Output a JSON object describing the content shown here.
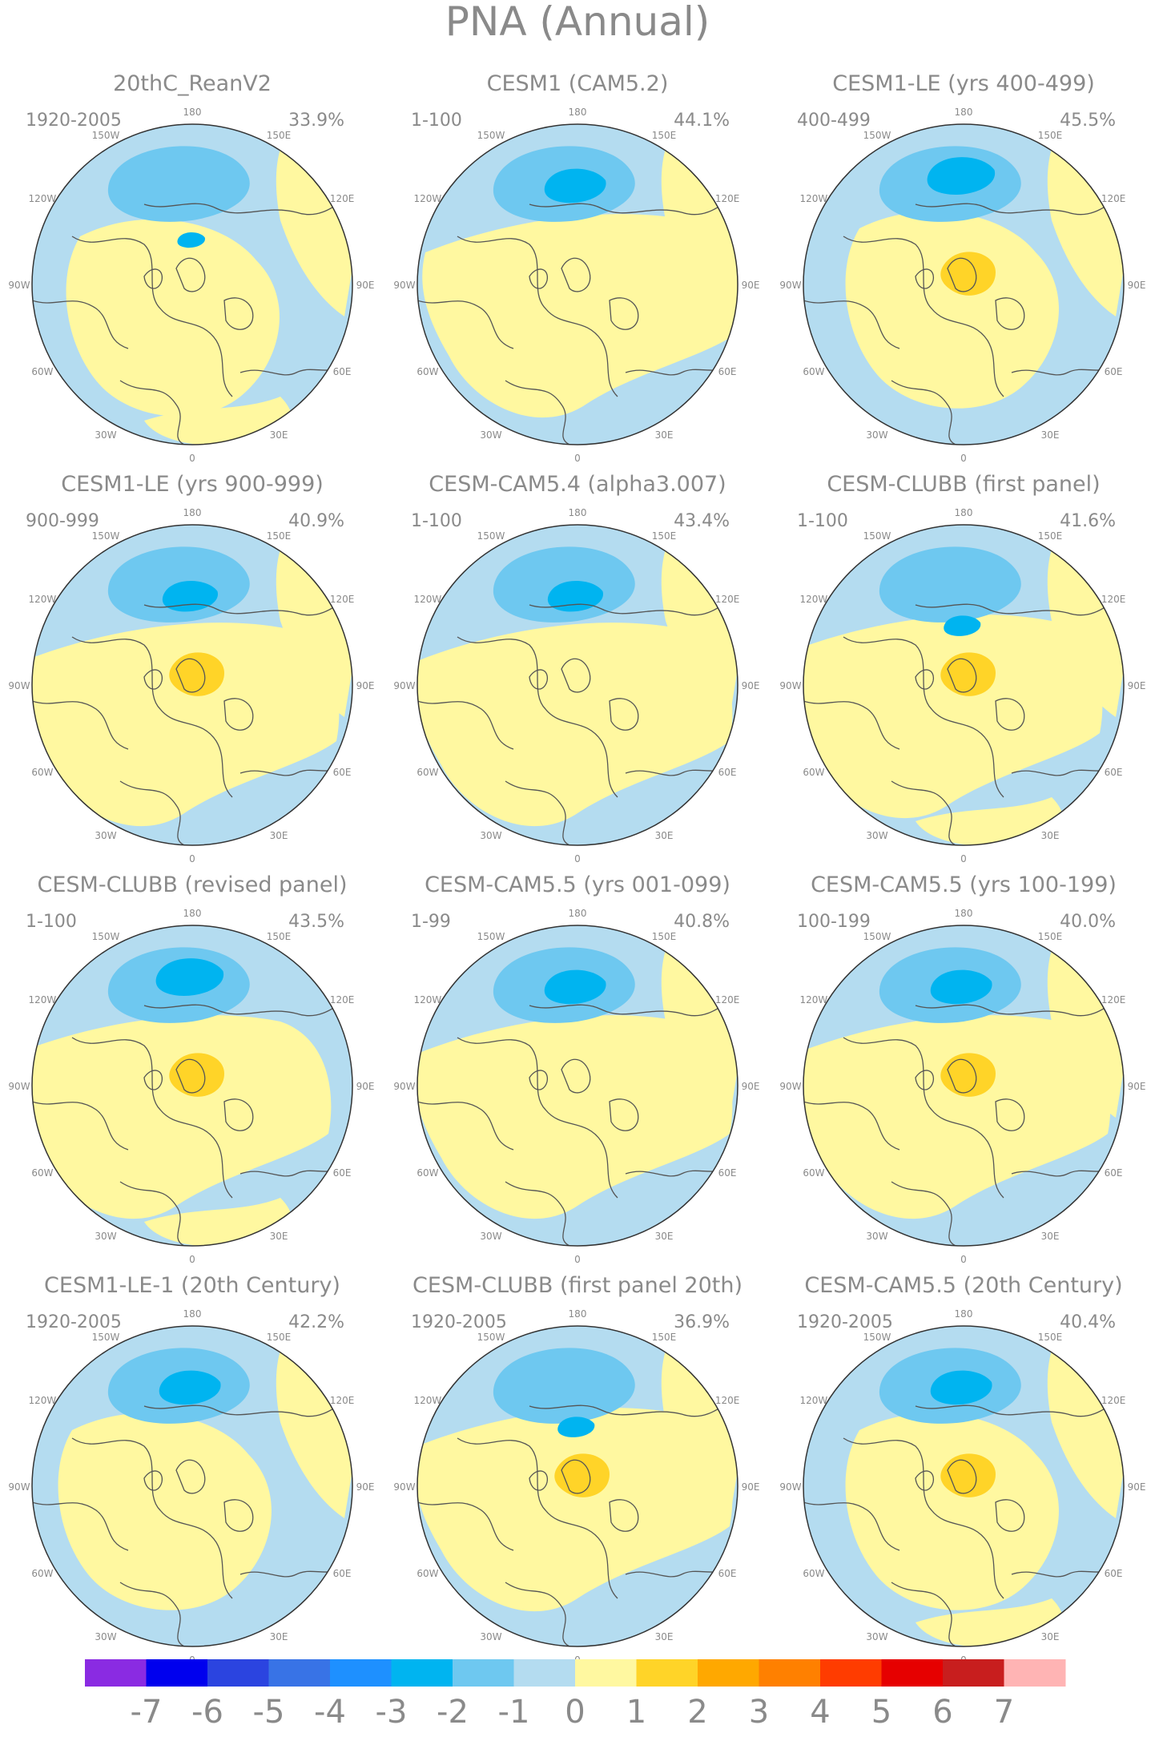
{
  "title": "PNA (Annual)",
  "panels": [
    {
      "name": "20thC_ReanV2",
      "period": "1920-2005",
      "pct": "33.9%"
    },
    {
      "name": "CESM1 (CAM5.2)",
      "period": "1-100",
      "pct": "44.1%"
    },
    {
      "name": "CESM1-LE (yrs 400-499)",
      "period": "400-499",
      "pct": "45.5%"
    },
    {
      "name": "CESM1-LE (yrs 900-999)",
      "period": "900-999",
      "pct": "40.9%"
    },
    {
      "name": "CESM-CAM5.4 (alpha3.007)",
      "period": "1-100",
      "pct": "43.4%"
    },
    {
      "name": "CESM-CLUBB (first panel)",
      "period": "1-100",
      "pct": "41.6%"
    },
    {
      "name": "CESM-CLUBB (revised panel)",
      "period": "1-100",
      "pct": "43.5%"
    },
    {
      "name": "CESM-CAM5.5 (yrs 001-099)",
      "period": "1-99",
      "pct": "40.8%"
    },
    {
      "name": "CESM-CAM5.5 (yrs 100-199)",
      "period": "100-199",
      "pct": "40.0%"
    },
    {
      "name": "CESM1-LE-1 (20th Century)",
      "period": "1920-2005",
      "pct": "42.2%"
    },
    {
      "name": "CESM-CLUBB (first panel 20th)",
      "period": "1920-2005",
      "pct": "36.9%"
    },
    {
      "name": "CESM-CAM5.5 (20th Century)",
      "period": "1920-2005",
      "pct": "40.4%"
    }
  ],
  "lon_labels": [
    "180",
    "150E",
    "120E",
    "90E",
    "60E",
    "30E",
    "0",
    "30W",
    "60W",
    "90W",
    "120W",
    "150W"
  ],
  "colorbar": {
    "colors": [
      "#8a2be2",
      "#0000ee",
      "#2b44e0",
      "#3873e6",
      "#1e90ff",
      "#00b4f0",
      "#6ec8f0",
      "#b4dcf0",
      "#fff8a0",
      "#ffd428",
      "#ffa800",
      "#ff8000",
      "#ff3c00",
      "#e60000",
      "#c81e1e",
      "#ffb4b4"
    ],
    "labels": [
      "-7",
      "-6",
      "-5",
      "-4",
      "-3",
      "-2",
      "-1",
      "0",
      "1",
      "2",
      "3",
      "4",
      "5",
      "6",
      "7"
    ]
  },
  "colors": {
    "ocean": "#b4dcf0",
    "pos1": "#fff8a0",
    "pos2": "#ffd428",
    "neg2": "#6ec8f0",
    "neg3": "#00b4f0",
    "coast": "#555555"
  }
}
